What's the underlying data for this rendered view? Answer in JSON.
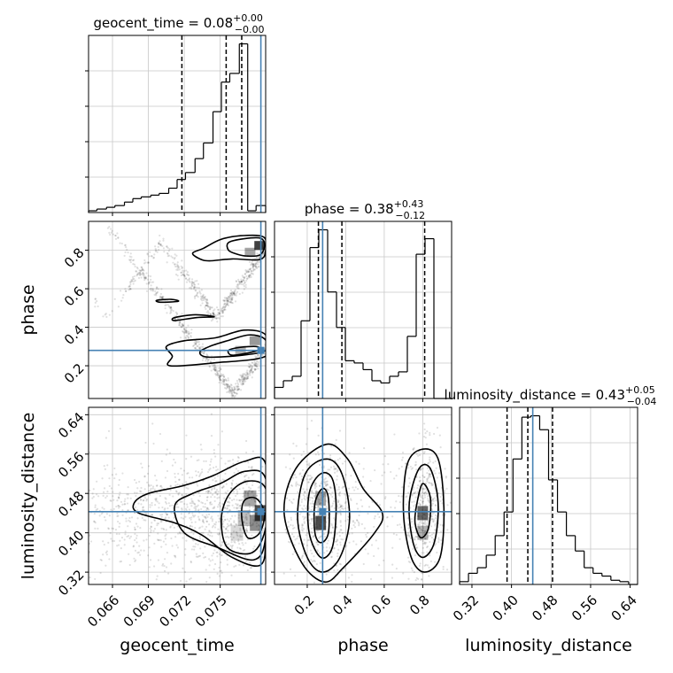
{
  "chart_data": {
    "type": "corner",
    "parameters": [
      "geocent_time",
      "phase",
      "luminosity_distance"
    ],
    "truth_color": "#4682b4",
    "truths": {
      "geocent_time": 0.0784,
      "phase": 0.28,
      "luminosity_distance": 0.443
    },
    "titles": [
      {
        "param": "geocent_time",
        "main": "geocent_time = 0.08",
        "sup": "+0.00",
        "sub": "−0.00"
      },
      {
        "param": "phase",
        "main": "phase = 0.38",
        "sup": "+0.43",
        "sub": "−0.12"
      },
      {
        "param": "luminosity_distance",
        "main": "luminosity_distance = 0.43",
        "sup": "+0.05",
        "sub": "−0.04"
      }
    ],
    "ranges": {
      "geocent_time": [
        0.064,
        0.0788
      ],
      "phase": [
        0.03,
        0.95
      ],
      "luminosity_distance": [
        0.295,
        0.655
      ]
    },
    "ticks": {
      "geocent_time": [
        {
          "v": 0.066,
          "label": "0.066"
        },
        {
          "v": 0.069,
          "label": "0.069"
        },
        {
          "v": 0.072,
          "label": "0.072"
        },
        {
          "v": 0.075,
          "label": "0.075"
        }
      ],
      "phase": [
        {
          "v": 0.2,
          "label": "0.2"
        },
        {
          "v": 0.4,
          "label": "0.4"
        },
        {
          "v": 0.6,
          "label": "0.6"
        },
        {
          "v": 0.8,
          "label": "0.8"
        }
      ],
      "luminosity_distance": [
        {
          "v": 0.32,
          "label": "0.32"
        },
        {
          "v": 0.4,
          "label": "0.40"
        },
        {
          "v": 0.48,
          "label": "0.48"
        },
        {
          "v": 0.56,
          "label": "0.56"
        },
        {
          "v": 0.64,
          "label": "0.64"
        }
      ]
    },
    "quantiles": {
      "geocent_time": [
        0.0718,
        0.0755,
        0.0768
      ],
      "phase": [
        0.258,
        0.38,
        0.81
      ],
      "luminosity_distance": [
        0.391,
        0.433,
        0.483
      ]
    },
    "histograms": {
      "geocent_time": {
        "edges": [
          0.064,
          0.0647,
          0.0655,
          0.0662,
          0.067,
          0.0677,
          0.0684,
          0.0692,
          0.0699,
          0.0707,
          0.0714,
          0.0721,
          0.0729,
          0.0736,
          0.0744,
          0.0751,
          0.0758,
          0.0766,
          0.0773,
          0.078,
          0.0788
        ],
        "counts": [
          1,
          2,
          3,
          4,
          6,
          8,
          9,
          10,
          11,
          14,
          19,
          23,
          31,
          40,
          58,
          75,
          80,
          97,
          1,
          4
        ]
      },
      "phase": {
        "edges": [
          0.03,
          0.076,
          0.122,
          0.168,
          0.214,
          0.26,
          0.306,
          0.352,
          0.398,
          0.444,
          0.49,
          0.536,
          0.582,
          0.628,
          0.674,
          0.72,
          0.766,
          0.812,
          0.858,
          0.904,
          0.95
        ],
        "counts": [
          5,
          8,
          10,
          35,
          68,
          76,
          48,
          32,
          17,
          16,
          13,
          8,
          7,
          10,
          12,
          28,
          65,
          72,
          0,
          0
        ]
      },
      "luminosity_distance": {
        "edges": [
          0.295,
          0.313,
          0.331,
          0.349,
          0.367,
          0.385,
          0.403,
          0.421,
          0.439,
          0.457,
          0.475,
          0.493,
          0.511,
          0.529,
          0.547,
          0.565,
          0.583,
          0.601,
          0.619,
          0.637,
          0.655
        ],
        "counts": [
          2,
          8,
          12,
          21,
          35,
          52,
          90,
          120,
          121,
          111,
          75,
          52,
          35,
          24,
          12,
          8,
          6,
          3,
          2,
          0
        ]
      }
    },
    "joint_contours": {
      "phase_vs_geocent_time": [
        {
          "level": 1,
          "points": [
            [
              0.0764,
              0.78
            ],
            [
              0.0772,
              0.77
            ],
            [
              0.0783,
              0.775
            ],
            [
              0.0787,
              0.82
            ],
            [
              0.0784,
              0.862
            ],
            [
              0.077,
              0.86
            ],
            [
              0.0757,
              0.84
            ],
            [
              0.0757,
              0.8
            ]
          ]
        },
        {
          "level": 1,
          "points": [
            [
              0.0741,
              0.745
            ],
            [
              0.076,
              0.755
            ],
            [
              0.0783,
              0.752
            ],
            [
              0.0788,
              0.8
            ],
            [
              0.0786,
              0.87
            ],
            [
              0.0766,
              0.875
            ],
            [
              0.075,
              0.855
            ],
            [
              0.0736,
              0.81
            ],
            [
              0.0727,
              0.785
            ],
            [
              0.0733,
              0.755
            ]
          ]
        },
        {
          "level": 1,
          "points": [
            [
              0.076,
              0.255
            ],
            [
              0.0776,
              0.27
            ],
            [
              0.0783,
              0.285
            ],
            [
              0.078,
              0.3
            ],
            [
              0.0766,
              0.295
            ],
            [
              0.0757,
              0.28
            ]
          ]
        },
        {
          "level": 1,
          "points": [
            [
              0.074,
              0.245
            ],
            [
              0.0769,
              0.255
            ],
            [
              0.0788,
              0.28
            ],
            [
              0.0787,
              0.34
            ],
            [
              0.0774,
              0.36
            ],
            [
              0.0756,
              0.33
            ],
            [
              0.0741,
              0.3
            ],
            [
              0.0733,
              0.27
            ]
          ]
        },
        {
          "level": 1,
          "points": [
            [
              0.0708,
              0.2
            ],
            [
              0.0745,
              0.215
            ],
            [
              0.0788,
              0.25
            ],
            [
              0.0788,
              0.36
            ],
            [
              0.077,
              0.385
            ],
            [
              0.0746,
              0.345
            ],
            [
              0.072,
              0.33
            ],
            [
              0.0705,
              0.3
            ],
            [
              0.071,
              0.25
            ]
          ]
        },
        {
          "level": 2,
          "points": [
            [
              0.0712,
              0.435
            ],
            [
              0.073,
              0.45
            ],
            [
              0.0745,
              0.455
            ],
            [
              0.0729,
              0.465
            ],
            [
              0.0712,
              0.45
            ]
          ]
        },
        {
          "level": 2,
          "points": [
            [
              0.07,
              0.53
            ],
            [
              0.0715,
              0.535
            ],
            [
              0.0709,
              0.545
            ],
            [
              0.0697,
              0.54
            ]
          ]
        }
      ],
      "luminosity_distance_vs_geocent_time": [
        {
          "level": 1,
          "points": [
            [
              0.0773,
              0.39
            ],
            [
              0.0783,
              0.4
            ],
            [
              0.0787,
              0.44
            ],
            [
              0.078,
              0.47
            ],
            [
              0.077,
              0.465
            ],
            [
              0.0768,
              0.43
            ]
          ]
        },
        {
          "level": 1,
          "points": [
            [
              0.0756,
              0.37
            ],
            [
              0.0777,
              0.36
            ],
            [
              0.0788,
              0.41
            ],
            [
              0.0788,
              0.49
            ],
            [
              0.0773,
              0.505
            ],
            [
              0.0758,
              0.48
            ],
            [
              0.0751,
              0.43
            ]
          ]
        },
        {
          "level": 1,
          "points": [
            [
              0.072,
              0.4
            ],
            [
              0.0748,
              0.37
            ],
            [
              0.0778,
              0.345
            ],
            [
              0.0788,
              0.39
            ],
            [
              0.0788,
              0.51
            ],
            [
              0.0771,
              0.525
            ],
            [
              0.075,
              0.5
            ],
            [
              0.0727,
              0.48
            ],
            [
              0.0712,
              0.455
            ]
          ]
        },
        {
          "level": 1,
          "points": [
            [
              0.0682,
              0.44
            ],
            [
              0.0712,
              0.42
            ],
            [
              0.0735,
              0.395
            ],
            [
              0.076,
              0.35
            ],
            [
              0.0784,
              0.335
            ],
            [
              0.0788,
              0.4
            ],
            [
              0.0788,
              0.54
            ],
            [
              0.077,
              0.545
            ],
            [
              0.0743,
              0.515
            ],
            [
              0.0718,
              0.495
            ],
            [
              0.069,
              0.48
            ],
            [
              0.0678,
              0.46
            ]
          ]
        }
      ],
      "luminosity_distance_vs_phase": [
        {
          "level": 1,
          "points": [
            [
              0.27,
              0.38
            ],
            [
              0.31,
              0.4
            ],
            [
              0.31,
              0.47
            ],
            [
              0.28,
              0.49
            ],
            [
              0.24,
              0.46
            ],
            [
              0.24,
              0.4
            ]
          ]
        },
        {
          "level": 1,
          "points": [
            [
              0.27,
              0.35
            ],
            [
              0.33,
              0.37
            ],
            [
              0.35,
              0.45
            ],
            [
              0.33,
              0.51
            ],
            [
              0.27,
              0.52
            ],
            [
              0.21,
              0.48
            ],
            [
              0.21,
              0.4
            ]
          ]
        },
        {
          "level": 1,
          "points": [
            [
              0.28,
              0.32
            ],
            [
              0.37,
              0.35
            ],
            [
              0.42,
              0.43
            ],
            [
              0.38,
              0.52
            ],
            [
              0.3,
              0.55
            ],
            [
              0.19,
              0.52
            ],
            [
              0.15,
              0.43
            ],
            [
              0.2,
              0.35
            ]
          ]
        },
        {
          "level": 1,
          "points": [
            [
              0.29,
              0.3
            ],
            [
              0.39,
              0.33
            ],
            [
              0.55,
              0.4
            ],
            [
              0.59,
              0.44
            ],
            [
              0.49,
              0.49
            ],
            [
              0.41,
              0.55
            ],
            [
              0.3,
              0.58
            ],
            [
              0.14,
              0.53
            ],
            [
              0.08,
              0.44
            ],
            [
              0.17,
              0.34
            ]
          ]
        },
        {
          "level": 1,
          "points": [
            [
              0.79,
              0.39
            ],
            [
              0.83,
              0.41
            ],
            [
              0.84,
              0.47
            ],
            [
              0.8,
              0.5
            ],
            [
              0.77,
              0.46
            ],
            [
              0.76,
              0.42
            ]
          ]
        },
        {
          "level": 1,
          "points": [
            [
              0.8,
              0.35
            ],
            [
              0.86,
              0.38
            ],
            [
              0.88,
              0.46
            ],
            [
              0.84,
              0.53
            ],
            [
              0.78,
              0.53
            ],
            [
              0.73,
              0.46
            ],
            [
              0.75,
              0.38
            ]
          ]
        },
        {
          "level": 1,
          "points": [
            [
              0.81,
              0.32
            ],
            [
              0.89,
              0.35
            ],
            [
              0.91,
              0.45
            ],
            [
              0.88,
              0.55
            ],
            [
              0.8,
              0.57
            ],
            [
              0.72,
              0.54
            ],
            [
              0.7,
              0.44
            ],
            [
              0.74,
              0.35
            ]
          ]
        }
      ]
    },
    "xlabel_bottom": [
      "geocent_time",
      "phase",
      "luminosity_distance"
    ],
    "ylabel_left": [
      "phase",
      "luminosity_distance"
    ]
  }
}
